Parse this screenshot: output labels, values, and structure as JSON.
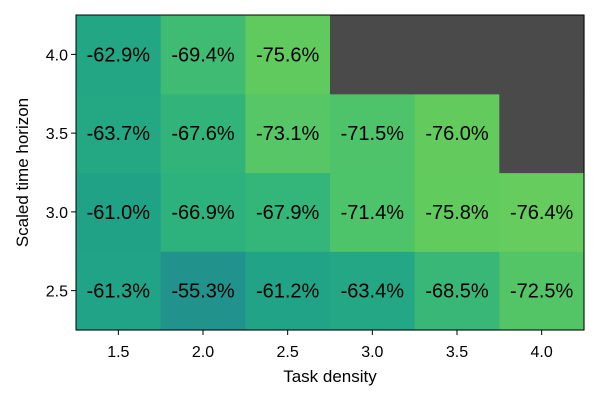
{
  "chart_data": {
    "type": "heatmap",
    "xlabel": "Task density",
    "ylabel": "Scaled time horizon",
    "x": [
      1.5,
      2.0,
      2.5,
      3.0,
      3.5,
      4.0
    ],
    "y": [
      2.5,
      3.0,
      3.5,
      4.0
    ],
    "x_tick_labels": [
      "1.5",
      "2.0",
      "2.5",
      "3.0",
      "3.5",
      "4.0"
    ],
    "y_tick_labels": [
      "2.5",
      "3.0",
      "3.5",
      "4.0"
    ],
    "xlim": [
      1.25,
      4.25
    ],
    "ylim": [
      2.25,
      4.25
    ],
    "grid": false,
    "legend": "none",
    "missing_color": "#4a4a4a",
    "colormap": "viridis-upper",
    "color_range": [
      -55,
      -77
    ],
    "values": [
      [
        -61.3,
        -55.3,
        -61.2,
        -63.4,
        -68.5,
        -72.5
      ],
      [
        -61.0,
        -66.9,
        -67.9,
        -71.4,
        -75.8,
        -76.4
      ],
      [
        -63.7,
        -67.6,
        -73.1,
        -71.5,
        -76.0,
        null
      ],
      [
        -62.9,
        -69.4,
        -75.6,
        null,
        null,
        null
      ]
    ],
    "labels": [
      [
        "-61.3%",
        "-55.3%",
        "-61.2%",
        "-63.4%",
        "-68.5%",
        "-72.5%"
      ],
      [
        "-61.0%",
        "-66.9%",
        "-67.9%",
        "-71.4%",
        "-75.8%",
        "-76.4%"
      ],
      [
        "-63.7%",
        "-67.6%",
        "-73.1%",
        "-71.5%",
        "-76.0%",
        null
      ],
      [
        "-62.9%",
        "-69.4%",
        "-75.6%",
        null,
        null,
        null
      ]
    ]
  }
}
